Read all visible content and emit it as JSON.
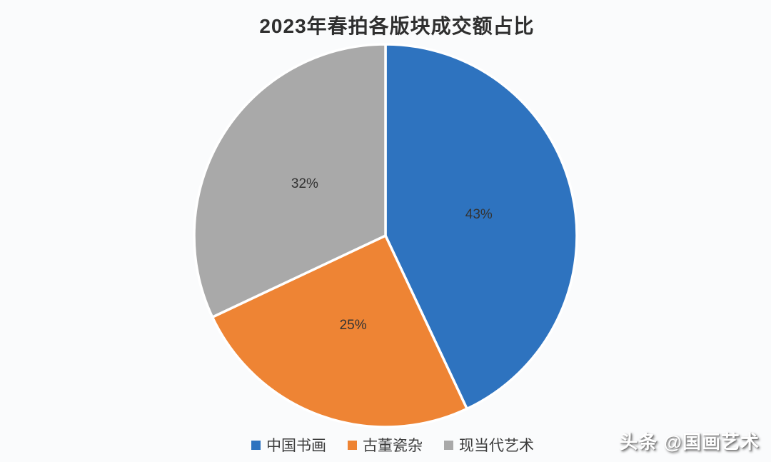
{
  "page": {
    "background_color": "#fafbfc"
  },
  "chart_data": {
    "type": "pie",
    "title": "2023年春拍各版块成交额占比",
    "slices": [
      {
        "label": "中国书画",
        "value": 43,
        "display": "43%",
        "color": "#2e73bf"
      },
      {
        "label": "古董瓷杂",
        "value": 25,
        "display": "25%",
        "color": "#ee8434"
      },
      {
        "label": "现当代艺术",
        "value": 32,
        "display": "32%",
        "color": "#a9a9a9"
      }
    ],
    "legend_position": "bottom",
    "legend_entries": [
      "中国书画",
      "古董瓷杂",
      "现当代艺术"
    ],
    "data_label_color": "#333333",
    "slice_divider_color": "#ffffff"
  },
  "watermark": {
    "text": "头条 @国画艺术"
  }
}
